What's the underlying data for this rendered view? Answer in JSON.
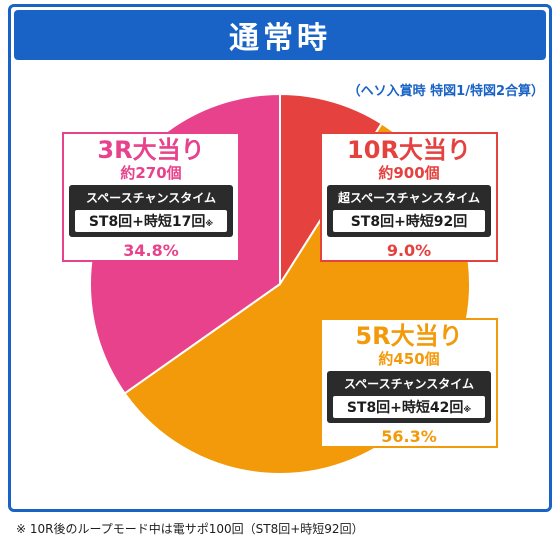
{
  "header": {
    "title": "通常時"
  },
  "note_top": "（ヘソ入賞時 特図1/特図2合算）",
  "colors": {
    "frame": "#1a63c6",
    "r3": "#e8428c",
    "r10": "#e4413f",
    "r5": "#f39a0a"
  },
  "chart_data": {
    "type": "pie",
    "slices": [
      {
        "label": "10R大当り",
        "value": 9.0
      },
      {
        "label": "5R大当り",
        "value": 56.3
      },
      {
        "label": "3R大当り",
        "value": 34.8
      }
    ]
  },
  "boxes": {
    "r3": {
      "name": "3R大当り",
      "count": "約270個",
      "mode": "スペースチャンスタイム",
      "detail": "ST8回+時短17回",
      "mark": "※",
      "pct": "34.8%"
    },
    "r10": {
      "name": "10R大当り",
      "count": "約900個",
      "mode": "超スペースチャンスタイム",
      "detail": "ST8回+時短92回",
      "pct": "9.0%"
    },
    "r5": {
      "name": "5R大当り",
      "count": "約450個",
      "mode": "スペースチャンスタイム",
      "detail": "ST8回+時短42回",
      "mark": "※",
      "pct": "56.3%"
    }
  },
  "footnote": "※ 10R後のループモード中は電サポ100回（ST8回+時短92回）"
}
